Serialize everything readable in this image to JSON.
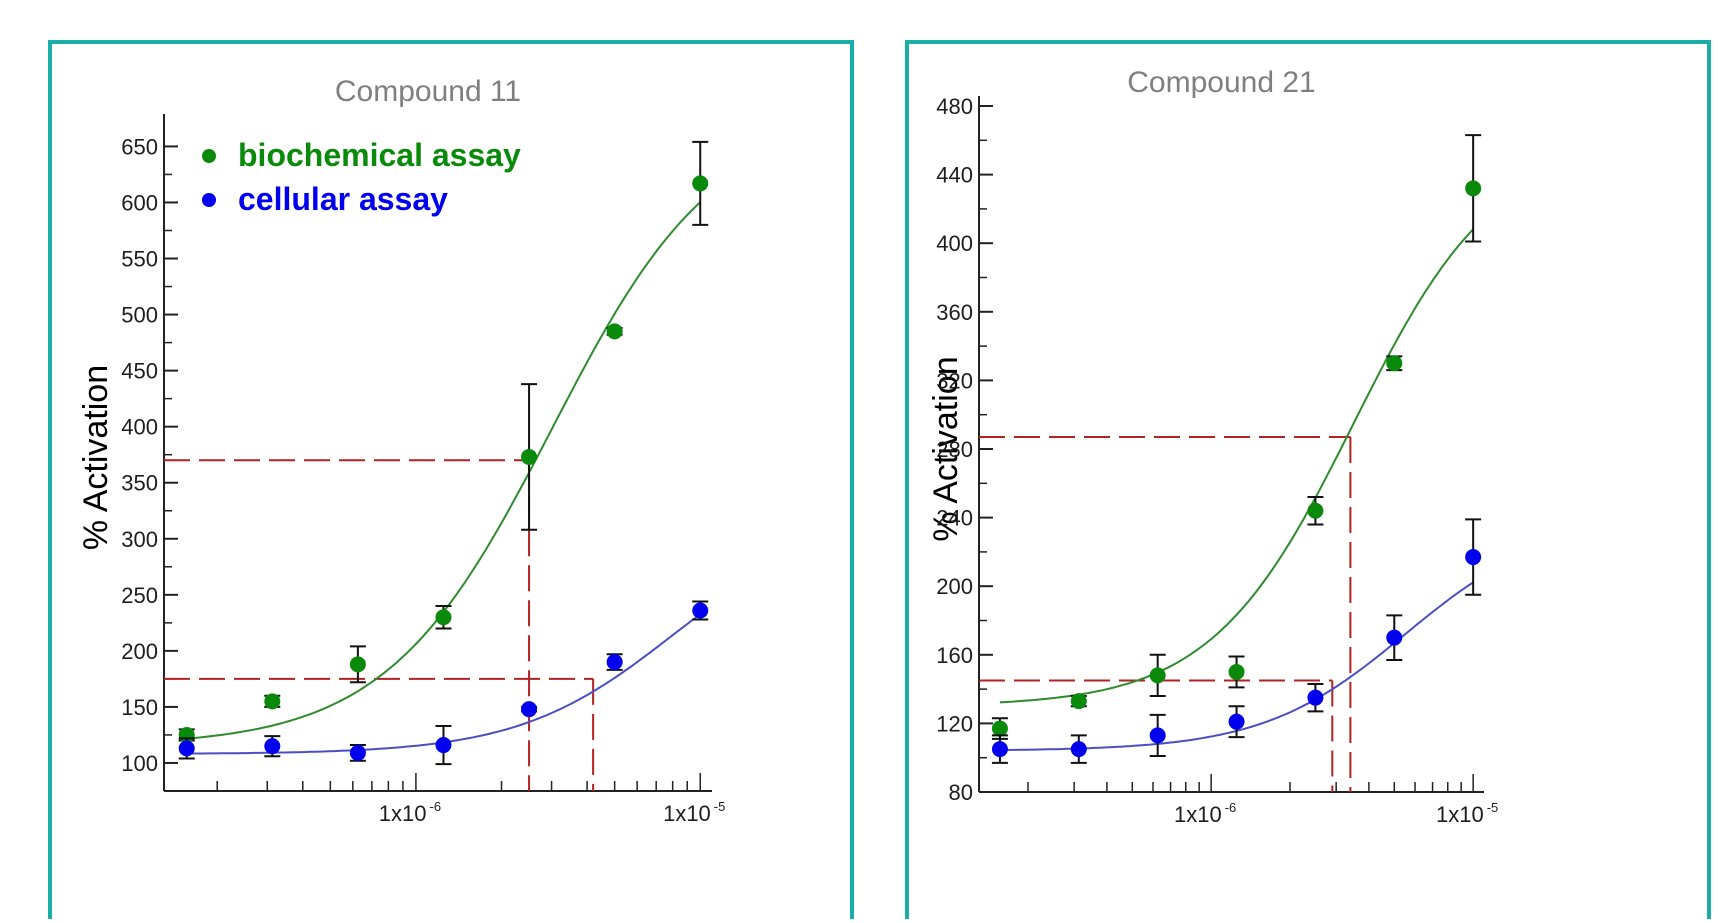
{
  "chart_data": [
    {
      "type": "scatter",
      "title": "Compound 11",
      "ylabel": "% Activation",
      "xlabel": "",
      "x_scale": "log",
      "xlim": [
        1.3e-07,
        1.1e-05
      ],
      "ylim": [
        75,
        670
      ],
      "y_ticks": [
        100,
        150,
        200,
        250,
        300,
        350,
        400,
        450,
        500,
        550,
        600,
        650
      ],
      "x_tick_labels": [
        {
          "value": 1e-06,
          "base": "1x10",
          "exp": "-6"
        },
        {
          "value": 1e-05,
          "base": "1x10",
          "exp": "-5"
        }
      ],
      "legend_position": "top-left",
      "series": [
        {
          "name": "biochemical assay",
          "color": "#0a8a0a",
          "curve_color": "#2e8b2e",
          "x": [
            1.5625e-07,
            3.125e-07,
            6.25e-07,
            1.25e-06,
            2.5e-06,
            5e-06,
            1e-05
          ],
          "y": [
            125,
            155,
            188,
            230,
            373,
            485,
            617
          ],
          "err": [
            5,
            5,
            16,
            10,
            65,
            3,
            37
          ],
          "curve": {
            "bottom": 115,
            "top": 680,
            "ec50": 3e-06,
            "hill": 1.5
          }
        },
        {
          "name": "cellular assay",
          "color": "#0000ee",
          "curve_color": "#4b4fc2",
          "x": [
            1.5625e-07,
            3.125e-07,
            6.25e-07,
            1.25e-06,
            2.5e-06,
            5e-06,
            1e-05
          ],
          "y": [
            113,
            115,
            109,
            116,
            148,
            190,
            236
          ],
          "err": [
            9,
            9,
            7,
            17,
            2,
            7,
            8
          ],
          "curve": {
            "bottom": 108,
            "top": 320,
            "ec50": 8e-06,
            "hill": 1.6
          }
        }
      ],
      "reference_lines": [
        {
          "y": 370,
          "x": 2.5e-06
        },
        {
          "y": 175,
          "x": 4.2e-06
        }
      ]
    },
    {
      "type": "scatter",
      "title": "Compound 21",
      "ylabel": "% Activation",
      "xlabel": "",
      "x_scale": "log",
      "xlim": [
        1.3e-07,
        1.1e-05
      ],
      "ylim": [
        80,
        480
      ],
      "y_ticks": [
        80,
        120,
        160,
        200,
        240,
        280,
        320,
        360,
        400,
        440,
        480
      ],
      "x_tick_labels": [
        {
          "value": 1e-06,
          "base": "1x10",
          "exp": "-6"
        },
        {
          "value": 1e-05,
          "base": "1x10",
          "exp": "-5"
        }
      ],
      "series": [
        {
          "name": "biochemical assay",
          "color": "#0a8a0a",
          "curve_color": "#2e8b2e",
          "x": [
            1.5625e-07,
            3.125e-07,
            6.25e-07,
            1.25e-06,
            2.5e-06,
            5e-06,
            1e-05
          ],
          "y": [
            117,
            133,
            148,
            150,
            244,
            330,
            432
          ],
          "err": [
            6,
            3,
            12,
            9,
            8,
            4,
            31
          ],
          "curve": {
            "bottom": 130,
            "top": 460,
            "ec50": 3.5e-06,
            "hill": 1.6
          }
        },
        {
          "name": "cellular assay",
          "color": "#0000ee",
          "curve_color": "#4b4fc2",
          "x": [
            1.5625e-07,
            3.125e-07,
            6.25e-07,
            1.25e-06,
            2.5e-06,
            5e-06,
            1e-05
          ],
          "y": [
            105,
            105,
            113,
            121,
            135,
            170,
            217
          ],
          "err": [
            8,
            8,
            12,
            9,
            8,
            13,
            22
          ],
          "curve": {
            "bottom": 104,
            "top": 240,
            "ec50": 5.5e-06,
            "hill": 1.6
          }
        }
      ],
      "reference_lines": [
        {
          "y": 287,
          "x": 3.4e-06
        },
        {
          "y": 145,
          "x": 2.9e-06
        }
      ]
    }
  ]
}
